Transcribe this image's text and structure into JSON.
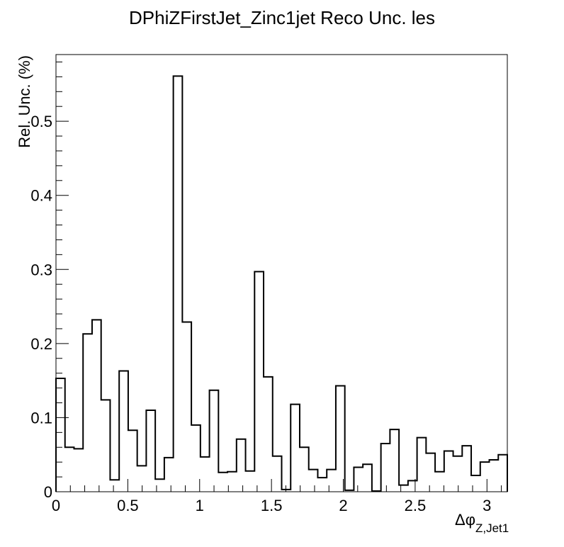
{
  "chart_data": {
    "type": "bar",
    "style": "step-histogram",
    "title": "DPhiZFirstJet_Zinc1jet Reco Unc. les",
    "xlabel": "Δφ",
    "xlabel_subscript": "Z,Jet1",
    "ylabel": "Rel. Unc. (%)",
    "xlim": [
      0,
      3.1416
    ],
    "ylim": [
      0,
      0.59
    ],
    "x_ticks": [
      0,
      0.5,
      1,
      1.5,
      2,
      2.5,
      3
    ],
    "x_tick_labels": [
      "0",
      "0.5",
      "1",
      "1.5",
      "2",
      "2.5",
      "3"
    ],
    "y_ticks": [
      0,
      0.1,
      0.2,
      0.3,
      0.4,
      0.5
    ],
    "y_tick_labels": [
      "0",
      "0.1",
      "0.2",
      "0.3",
      "0.4",
      "0.5"
    ],
    "bin_edges_start": 0,
    "bin_width": 0.062832,
    "values": [
      0.153,
      0.06,
      0.058,
      0.213,
      0.232,
      0.124,
      0.016,
      0.163,
      0.083,
      0.035,
      0.11,
      0.017,
      0.046,
      0.561,
      0.229,
      0.09,
      0.047,
      0.137,
      0.026,
      0.027,
      0.071,
      0.028,
      0.297,
      0.155,
      0.048,
      0.003,
      0.118,
      0.06,
      0.03,
      0.019,
      0.03,
      0.143,
      0.002,
      0.033,
      0.037,
      0.001,
      0.065,
      0.084,
      0.009,
      0.015,
      0.073,
      0.052,
      0.027,
      0.055,
      0.048,
      0.062,
      0.022,
      0.04,
      0.043,
      0.05
    ],
    "grid": false,
    "legend": "none",
    "line_color": "#000000"
  }
}
